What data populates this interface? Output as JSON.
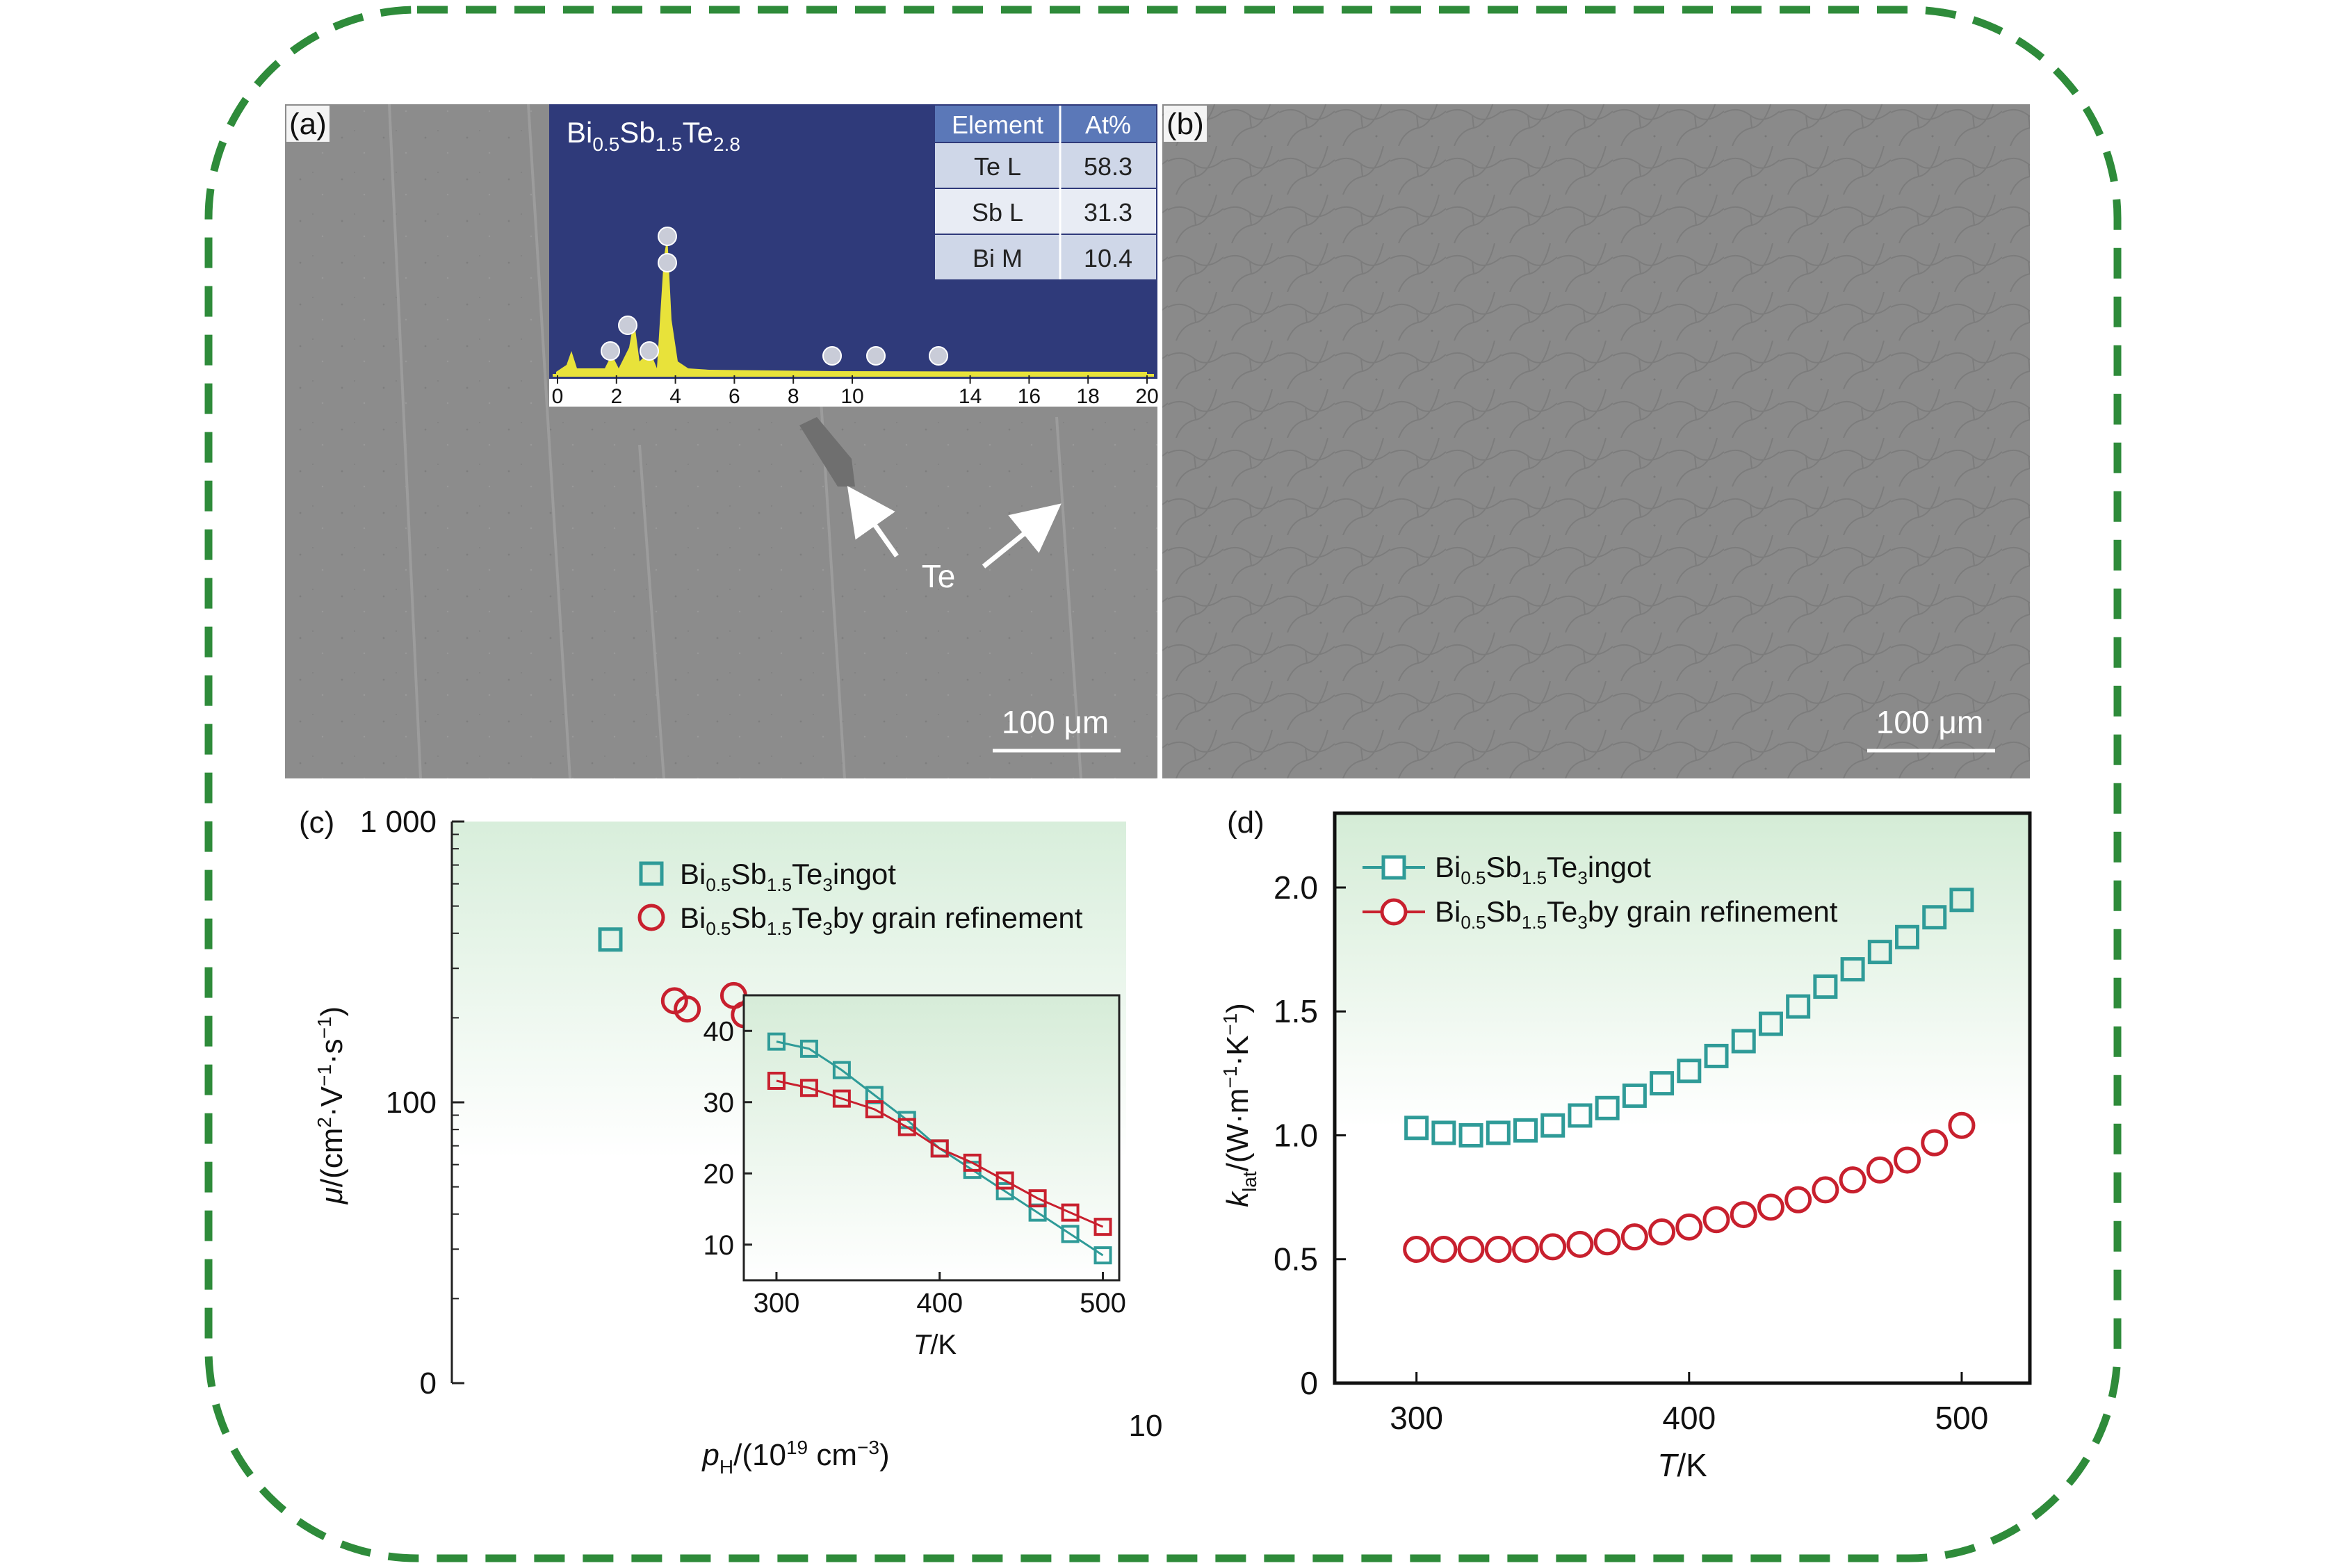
{
  "panel_labels": {
    "a": "(a)",
    "b": "(b)",
    "c": "(c)",
    "d": "(d)"
  },
  "sem": {
    "scale_bar_a": "100 μm",
    "scale_bar_b": "100 μm",
    "arrow_label": "Te",
    "eds": {
      "formula": {
        "base1": "Bi",
        "sub1": "0.5",
        "base2": "Sb",
        "sub2": "1.5",
        "base3": "Te",
        "sub3": "2.8"
      },
      "axis_ticks": [
        "0",
        "2",
        "4",
        "6",
        "8",
        "10",
        "14",
        "16",
        "18",
        "20"
      ],
      "table": {
        "headers": [
          "Element",
          "At%"
        ],
        "rows": [
          [
            "Te L",
            "58.3"
          ],
          [
            "Sb L",
            "31.3"
          ],
          [
            "Bi M",
            "10.4"
          ]
        ]
      }
    }
  },
  "legend": {
    "ingot": {
      "b1": "Bi",
      "s1": "0.5",
      "b2": "Sb",
      "s2": "1.5",
      "b3": "Te",
      "s3": "3",
      "tail": "ingot"
    },
    "refined": {
      "b1": "Bi",
      "s1": "0.5",
      "b2": "Sb",
      "s2": "1.5",
      "b3": "Te",
      "s3": "3",
      "tail": "by grain refinement"
    }
  },
  "colors": {
    "ingot": "#2f9b98",
    "refined": "#c8202e",
    "spectrum_bg": "#2f3a7a",
    "spectrum_peak": "#e8e23a",
    "frame": "#2e8b3a"
  },
  "chart_data": [
    {
      "panel": "c",
      "type": "scatter",
      "xlabel": {
        "italic": "p",
        "sub": "H",
        "rest": "/(10",
        "sup": "19",
        "rest2": " cm",
        "sup2": "−3",
        "rest3": ")"
      },
      "ylabel": {
        "italic": "μ",
        "rest": "/(cm",
        "sup": "2",
        "rest2": "·V",
        "sup2": "−1",
        "rest3": "·s",
        "sup3": "−1",
        "rest4": ")"
      },
      "yticks": [
        "0",
        "100",
        "1 000"
      ],
      "xticks": [
        "10"
      ],
      "series": [
        {
          "name": "Bi0.5Sb1.5Te3 ingot",
          "marker": "square",
          "points": [
            {
              "x": 2.1,
              "y": 380
            }
          ]
        },
        {
          "name": "Bi0.5Sb1.5Te3 by grain refinement",
          "marker": "circle",
          "points": [
            {
              "x": 2.55,
              "y": 230
            },
            {
              "x": 2.65,
              "y": 215
            },
            {
              "x": 3.05,
              "y": 240
            },
            {
              "x": 3.15,
              "y": 205
            }
          ]
        }
      ],
      "inset": {
        "type": "line",
        "xlabel": {
          "italic": "T",
          "rest": "/K"
        },
        "xticks": [
          "300",
          "400",
          "500"
        ],
        "yticks": [
          "10",
          "20",
          "30",
          "40"
        ],
        "xlim": [
          280,
          510
        ],
        "ylim": [
          5,
          45
        ],
        "series": [
          {
            "name": "Bi0.5Sb1.5Te3 ingot",
            "marker": "square",
            "x": [
              300,
              320,
              340,
              360,
              380,
              400,
              420,
              440,
              460,
              480,
              500
            ],
            "y": [
              38.5,
              37.5,
              34.5,
              31,
              27.5,
              23.5,
              20.5,
              17.5,
              14.5,
              11.5,
              8.5
            ]
          },
          {
            "name": "Bi0.5Sb1.5Te3 by grain refinement",
            "marker": "square",
            "x": [
              300,
              320,
              340,
              360,
              380,
              400,
              420,
              440,
              460,
              480,
              500
            ],
            "y": [
              33,
              32,
              30.5,
              29,
              26.5,
              23.5,
              21.5,
              19,
              16.5,
              14.5,
              12.5
            ]
          }
        ]
      }
    },
    {
      "panel": "d",
      "type": "scatter",
      "xlabel": {
        "italic": "T",
        "rest": "/K"
      },
      "ylabel": {
        "italic": "k",
        "sub": "lat",
        "rest": "/(W·m",
        "sup": "−1",
        "rest2": "·K",
        "sup2": "−1",
        "rest3": ")"
      },
      "xticks": [
        "300",
        "400",
        "500"
      ],
      "yticks": [
        "0",
        "0.5",
        "1.0",
        "1.5",
        "2.0"
      ],
      "xlim": [
        270,
        525
      ],
      "ylim": [
        0,
        2.3
      ],
      "series": [
        {
          "name": "Bi0.5Sb1.5Te3 ingot",
          "marker": "square",
          "x": [
            300,
            310,
            320,
            330,
            340,
            350,
            360,
            370,
            380,
            390,
            400,
            410,
            420,
            430,
            440,
            450,
            460,
            470,
            480,
            490,
            500
          ],
          "y": [
            1.03,
            1.01,
            1.0,
            1.01,
            1.02,
            1.04,
            1.08,
            1.11,
            1.16,
            1.21,
            1.26,
            1.32,
            1.38,
            1.45,
            1.52,
            1.6,
            1.67,
            1.74,
            1.8,
            1.88,
            1.95
          ]
        },
        {
          "name": "Bi0.5Sb1.5Te3 by grain refinement",
          "marker": "circle",
          "x": [
            300,
            310,
            320,
            330,
            340,
            350,
            360,
            370,
            380,
            390,
            400,
            410,
            420,
            430,
            440,
            450,
            460,
            470,
            480,
            490,
            500
          ],
          "y": [
            0.54,
            0.54,
            0.54,
            0.54,
            0.54,
            0.55,
            0.56,
            0.57,
            0.59,
            0.61,
            0.63,
            0.66,
            0.68,
            0.71,
            0.74,
            0.78,
            0.82,
            0.86,
            0.9,
            0.97,
            1.04
          ]
        }
      ]
    }
  ]
}
